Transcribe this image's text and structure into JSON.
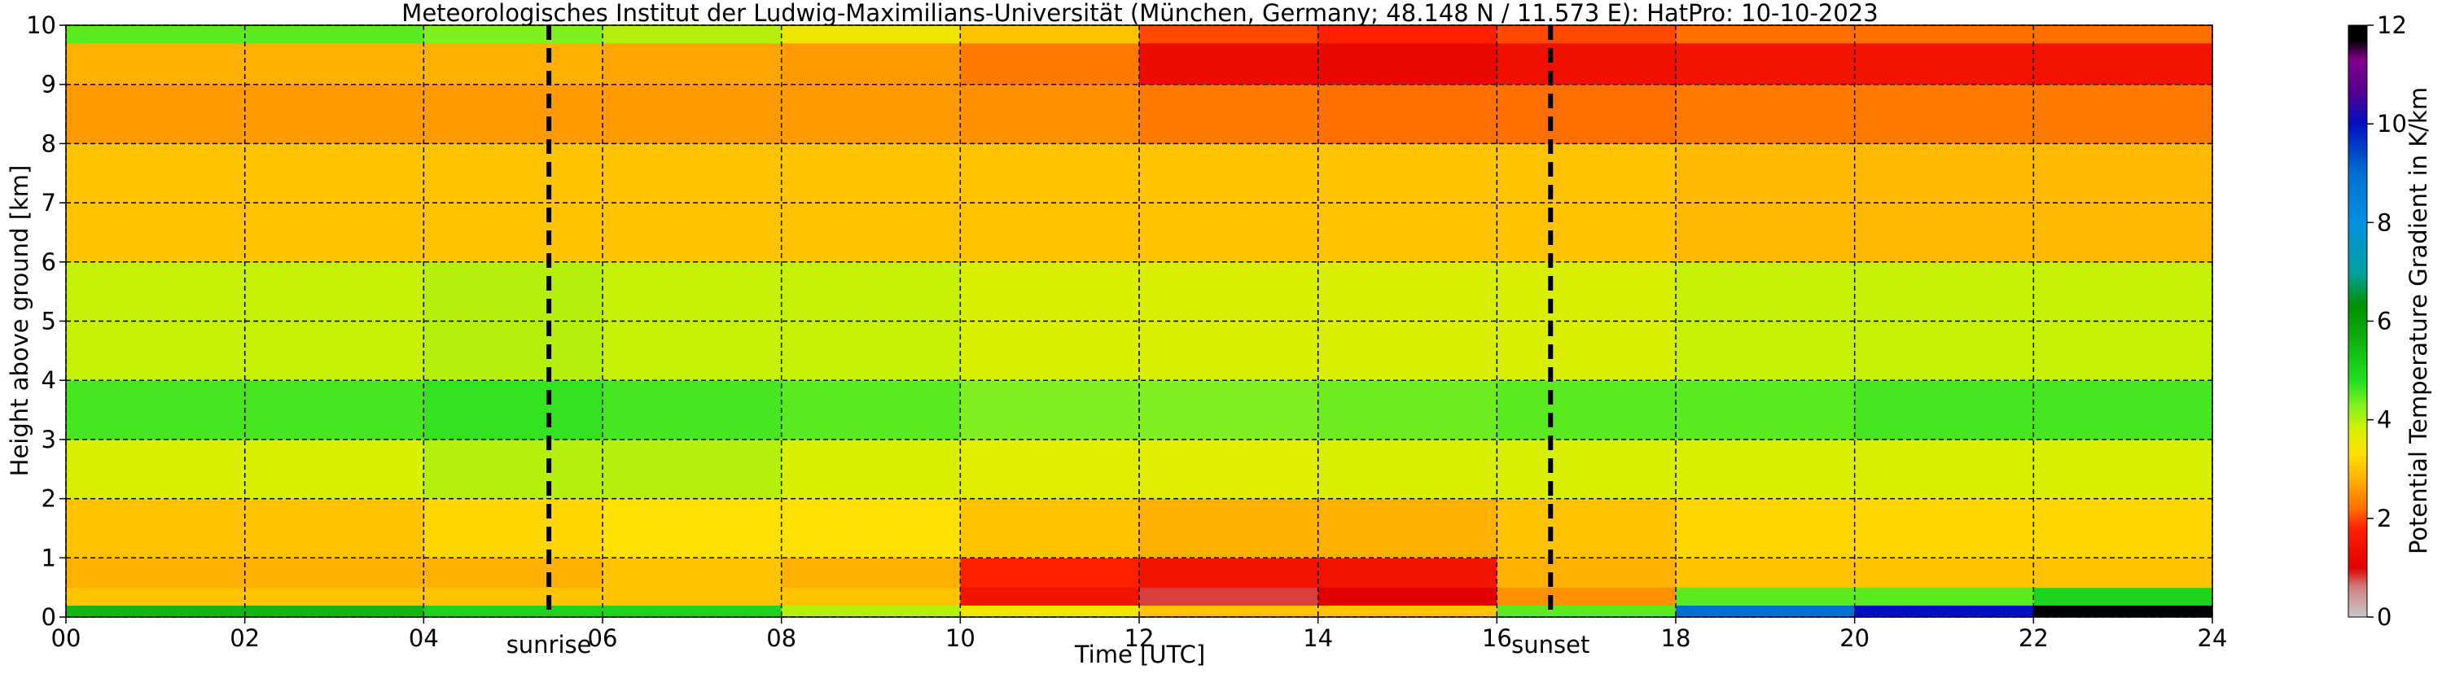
{
  "chart_data": {
    "type": "heatmap",
    "title": "Meteorologisches Institut der Ludwig-Maximilians-Universität (München, Germany; 48.148 N / 11.573 E):    HatPro: 10-10-2023",
    "xlabel": "Time [UTC]",
    "ylabel": "Height above ground [km]",
    "colorbar_label": "Potential Temperature Gradient in K/km",
    "x": [
      0,
      2,
      4,
      6,
      8,
      10,
      12,
      14,
      16,
      18,
      20,
      22,
      24
    ],
    "y": [
      0,
      0.2,
      0.5,
      1,
      2,
      3,
      4,
      6,
      8,
      9,
      9.7,
      10
    ],
    "z": [
      [
        5.5,
        5.5,
        5,
        5,
        4,
        3.5,
        3,
        3,
        4.5,
        9,
        10,
        11.8
      ],
      [
        3,
        3,
        3,
        3,
        3,
        1.5,
        0.8,
        1,
        2.5,
        4.5,
        4.5,
        5
      ],
      [
        2.8,
        2.8,
        2.8,
        3,
        2.8,
        1.8,
        1.5,
        1.5,
        2.8,
        3,
        3,
        3
      ],
      [
        3,
        3,
        3.2,
        3.3,
        3.3,
        3,
        2.8,
        2.8,
        3,
        3.2,
        3.2,
        3.2
      ],
      [
        3.8,
        3.8,
        4,
        4,
        3.8,
        3.7,
        3.7,
        3.8,
        3.8,
        3.8,
        3.8,
        3.8
      ],
      [
        4.6,
        4.6,
        4.7,
        4.6,
        4.5,
        4.3,
        4.3,
        4.4,
        4.5,
        4.5,
        4.6,
        4.6
      ],
      [
        3.9,
        3.9,
        4,
        3.9,
        3.9,
        3.8,
        3.8,
        3.8,
        3.8,
        3.9,
        3.9,
        3.9
      ],
      [
        3,
        3,
        3,
        3,
        3,
        3,
        3,
        3,
        3,
        2.9,
        2.9,
        2.9
      ],
      [
        2.6,
        2.6,
        2.6,
        2.6,
        2.6,
        2.5,
        2.3,
        2.2,
        2.2,
        2.3,
        2.3,
        2.3
      ],
      [
        2.8,
        2.8,
        2.8,
        2.7,
        2.6,
        2.3,
        1.3,
        1.2,
        1.4,
        1.5,
        1.5,
        1.5
      ],
      [
        4.5,
        4.5,
        4.3,
        4,
        3.5,
        3,
        2,
        1.8,
        2,
        2.2,
        2.2,
        2.2
      ]
    ],
    "xlim": [
      0,
      24
    ],
    "xticks": [
      {
        "value": 0,
        "label": "00"
      },
      {
        "value": 2,
        "label": "02"
      },
      {
        "value": 4,
        "label": "04"
      },
      {
        "value": 6,
        "label": "06"
      },
      {
        "value": 8,
        "label": "08"
      },
      {
        "value": 10,
        "label": "10"
      },
      {
        "value": 12,
        "label": "12"
      },
      {
        "value": 14,
        "label": "14"
      },
      {
        "value": 16,
        "label": "16"
      },
      {
        "value": 18,
        "label": "18"
      },
      {
        "value": 20,
        "label": "20"
      },
      {
        "value": 22,
        "label": "22"
      },
      {
        "value": 24,
        "label": "24"
      }
    ],
    "ylim": [
      0,
      10
    ],
    "yticks": [
      0,
      1,
      2,
      3,
      4,
      5,
      6,
      7,
      8,
      9,
      10
    ],
    "clim": [
      0,
      12
    ],
    "cticks": [
      0,
      2,
      4,
      6,
      8,
      10,
      12
    ],
    "colorscale": [
      {
        "value": 0,
        "color": "#c8c8c8"
      },
      {
        "value": 0.6,
        "color": "#d08080"
      },
      {
        "value": 1,
        "color": "#e00000"
      },
      {
        "value": 1.8,
        "color": "#ff2000"
      },
      {
        "value": 2.2,
        "color": "#ff7000"
      },
      {
        "value": 2.8,
        "color": "#ffb000"
      },
      {
        "value": 3.3,
        "color": "#ffe000"
      },
      {
        "value": 3.8,
        "color": "#d8f000"
      },
      {
        "value": 4.3,
        "color": "#80f020"
      },
      {
        "value": 4.8,
        "color": "#20e020"
      },
      {
        "value": 5.6,
        "color": "#10b010"
      },
      {
        "value": 6.3,
        "color": "#009000"
      },
      {
        "value": 7,
        "color": "#00a0a0"
      },
      {
        "value": 8,
        "color": "#0090e0"
      },
      {
        "value": 9,
        "color": "#0070d0"
      },
      {
        "value": 10,
        "color": "#0010c0"
      },
      {
        "value": 10.6,
        "color": "#500090"
      },
      {
        "value": 11.3,
        "color": "#80008a"
      },
      {
        "value": 11.7,
        "color": "#000000"
      },
      {
        "value": 12,
        "color": "#000000"
      }
    ],
    "annotations": [
      {
        "x": 5.4,
        "text": "sunrise"
      },
      {
        "x": 16.6,
        "text": "sunset"
      }
    ],
    "grid": true
  }
}
